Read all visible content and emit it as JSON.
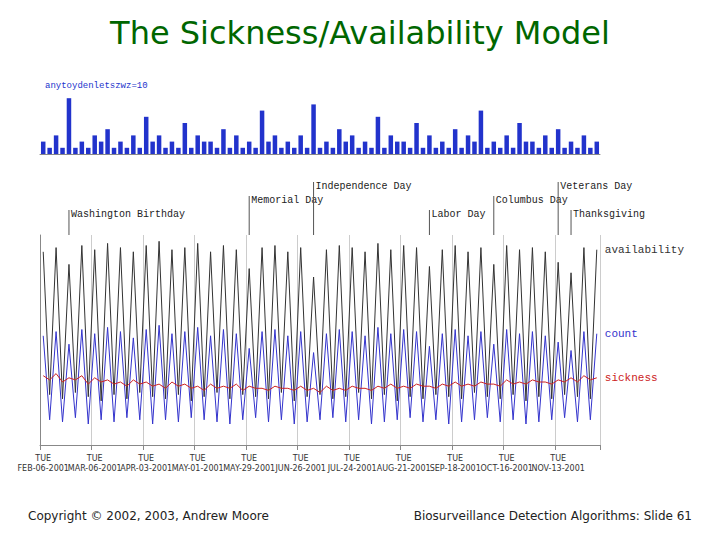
{
  "slide": {
    "title": "The Sickness/Availability Model",
    "footer_left": "Copyright © 2002, 2003, Andrew Moore",
    "footer_right": "Biosurveillance Detection Algorithms: Slide 61"
  },
  "chart_data": [
    {
      "type": "bar",
      "title": "anytoydenletszwz=10",
      "color": "#2233cc",
      "values": [
        2,
        1,
        3,
        1,
        9,
        1,
        2,
        1,
        3,
        2,
        4,
        1,
        2,
        1,
        3,
        1,
        6,
        2,
        3,
        1,
        2,
        1,
        5,
        1,
        3,
        2,
        2,
        1,
        4,
        1,
        3,
        1,
        2,
        1,
        7,
        2,
        3,
        1,
        2,
        1,
        3,
        1,
        8,
        1,
        2,
        1,
        4,
        2,
        3,
        1,
        2,
        1,
        6,
        1,
        3,
        2,
        2,
        1,
        5,
        1,
        3,
        1,
        2,
        1,
        4,
        1,
        3,
        2,
        7,
        1,
        2,
        1,
        3,
        1,
        5,
        2,
        2,
        1,
        3,
        1,
        4,
        1,
        2,
        1,
        3,
        1,
        2
      ],
      "ylim": [
        0,
        10
      ],
      "yticks": [
        0,
        10
      ],
      "tick_labels": false,
      "grid": false
    },
    {
      "type": "line",
      "categories": [
        "TUE\nFEB-06-2001",
        null,
        null,
        null,
        null,
        null,
        null,
        null,
        "TUE\nMAR-06-2001",
        null,
        null,
        null,
        null,
        null,
        null,
        null,
        "TUE\nAPR-03-2001",
        null,
        null,
        null,
        null,
        null,
        null,
        null,
        "TUE\nMAY-01-2001",
        null,
        null,
        null,
        null,
        null,
        null,
        null,
        "TUE\nMAY-29-2001",
        null,
        null,
        null,
        null,
        null,
        null,
        null,
        "TUE\nJUN-26-2001",
        null,
        null,
        null,
        null,
        null,
        null,
        null,
        "TUE\nJUL-24-2001",
        null,
        null,
        null,
        null,
        null,
        null,
        null,
        "TUE\nAUG-21-2001",
        null,
        null,
        null,
        null,
        null,
        null,
        null,
        "TUE\nSEP-18-2001",
        null,
        null,
        null,
        null,
        null,
        null,
        null,
        "TUE\nOCT-16-2001",
        null,
        null,
        null,
        null,
        null,
        null,
        null,
        "TUE\nNOV-13-2001",
        null,
        null,
        null,
        null,
        null,
        null
      ],
      "series": [
        {
          "name": "availability",
          "color": "#333333",
          "values": [
            92,
            24,
            94,
            22,
            86,
            25,
            95,
            23,
            93,
            21,
            96,
            24,
            94,
            22,
            92,
            25,
            95,
            23,
            97,
            22,
            93,
            24,
            94,
            21,
            96,
            23,
            92,
            25,
            95,
            22,
            93,
            24,
            84,
            23,
            94,
            22,
            95,
            25,
            92,
            21,
            94,
            23,
            80,
            24,
            93,
            22,
            95,
            23,
            94,
            25,
            92,
            22,
            96,
            24,
            93,
            21,
            95,
            23,
            94,
            22,
            85,
            24,
            93,
            23,
            95,
            22,
            92,
            25,
            94,
            23,
            86,
            22,
            95,
            24,
            93,
            21,
            94,
            23,
            92,
            22,
            87,
            24,
            82,
            23,
            94,
            22,
            93
          ]
        },
        {
          "name": "count",
          "color": "#3333cc",
          "values": [
            52,
            12,
            54,
            11,
            48,
            13,
            55,
            10,
            53,
            12,
            56,
            11,
            54,
            13,
            51,
            12,
            55,
            10,
            57,
            12,
            53,
            11,
            54,
            13,
            56,
            12,
            52,
            11,
            55,
            10,
            53,
            12,
            46,
            13,
            54,
            11,
            55,
            12,
            52,
            10,
            54,
            11,
            44,
            12,
            53,
            13,
            55,
            11,
            54,
            12,
            52,
            10,
            56,
            11,
            53,
            12,
            55,
            13,
            54,
            11,
            47,
            12,
            53,
            10,
            55,
            11,
            52,
            12,
            54,
            13,
            48,
            11,
            55,
            12,
            53,
            10,
            54,
            11,
            52,
            12,
            49,
            13,
            45,
            11,
            54,
            12,
            53
          ]
        },
        {
          "name": "sickness",
          "color": "#cc2222",
          "values": [
            33,
            31,
            34,
            30,
            32,
            31,
            33,
            29,
            32,
            30,
            31,
            29,
            30,
            28,
            31,
            29,
            30,
            28,
            29,
            27,
            30,
            28,
            29,
            27,
            28,
            26,
            29,
            27,
            28,
            27,
            29,
            26,
            28,
            27,
            27,
            26,
            28,
            27,
            27,
            26,
            28,
            26,
            27,
            25,
            28,
            26,
            27,
            26,
            28,
            27,
            27,
            26,
            28,
            27,
            29,
            27,
            28,
            27,
            29,
            28,
            28,
            27,
            29,
            28,
            30,
            28,
            29,
            28,
            30,
            29,
            29,
            28,
            31,
            29,
            30,
            29,
            31,
            30,
            30,
            29,
            31,
            30,
            32,
            30,
            33,
            31,
            32
          ]
        }
      ],
      "ylim": [
        0,
        100
      ],
      "yticks": [
        0,
        25,
        50,
        75,
        100
      ],
      "tick_labels": "x",
      "grid": true,
      "annotations": [
        {
          "label": "Washington Birthday",
          "index": 4
        },
        {
          "label": "Memorial Day",
          "index": 32
        },
        {
          "label": "Independence Day",
          "index": 42
        },
        {
          "label": "Labor Day",
          "index": 60
        },
        {
          "label": "Columbus Day",
          "index": 70
        },
        {
          "label": "Veterans Day",
          "index": 80
        },
        {
          "label": "Thanksgiving",
          "index": 82
        }
      ]
    }
  ]
}
